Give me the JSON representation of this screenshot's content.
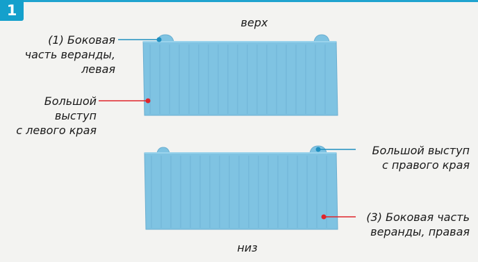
{
  "step": "1",
  "labels": {
    "top": "верх",
    "bottom": "низ",
    "left_side_line1": "(1) Боковая",
    "left_side_line2": "часть веранды,",
    "left_side_line3": "левая",
    "big_left_line1": "Большой",
    "big_left_line2": "выступ",
    "big_left_line3": "с левого края",
    "big_right_line1": "Большой выступ",
    "big_right_line2": "с правого края",
    "right_side_line1": "(3) Боковая часть",
    "right_side_line2": "веранды, правая"
  },
  "colors": {
    "accent": "#14a0cc",
    "panel": "#7fc3e2",
    "panel_dark": "#6aaed0",
    "leader_blue": "#1f8fc0",
    "leader_red": "#e0242b"
  }
}
